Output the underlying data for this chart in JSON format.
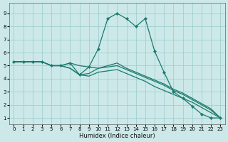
{
  "xlabel": "Humidex (Indice chaleur)",
  "bg_color": "#cce8e8",
  "line_color": "#1a7a6e",
  "grid_color": "#99cccc",
  "ylim": [
    0.5,
    9.8
  ],
  "yticks": [
    1,
    2,
    3,
    4,
    5,
    6,
    7,
    8,
    9
  ],
  "xtick_labels": [
    "0",
    "1",
    "2",
    "3",
    "5",
    "6",
    "7",
    "8",
    "9",
    "10",
    "11",
    "12",
    "13",
    "14",
    "15",
    "16",
    "17",
    "18",
    "19",
    "20",
    "21",
    "22",
    "23"
  ],
  "series": [
    {
      "x": [
        0,
        1,
        2,
        3,
        4,
        5,
        6,
        7,
        8,
        9,
        10,
        11,
        12,
        13,
        14,
        15,
        16,
        17,
        18,
        19,
        20,
        21,
        22
      ],
      "y": [
        5.3,
        5.3,
        5.3,
        5.3,
        5.0,
        5.0,
        5.2,
        4.3,
        4.9,
        6.3,
        8.6,
        9.0,
        8.6,
        8.0,
        8.6,
        6.1,
        4.5,
        3.0,
        2.5,
        1.9,
        1.3,
        1.0,
        1.0
      ],
      "has_markers": true
    },
    {
      "x": [
        0,
        1,
        2,
        3,
        4,
        5,
        6,
        7,
        8,
        9,
        10,
        11,
        12,
        13,
        14,
        15,
        16,
        17,
        18,
        19,
        20,
        21,
        22
      ],
      "y": [
        5.3,
        5.3,
        5.3,
        5.3,
        5.0,
        5.0,
        4.8,
        4.3,
        4.4,
        4.8,
        5.0,
        5.2,
        4.8,
        4.5,
        4.2,
        3.9,
        3.6,
        3.2,
        2.9,
        2.5,
        2.1,
        1.7,
        1.0
      ],
      "has_markers": false
    },
    {
      "x": [
        0,
        1,
        2,
        3,
        4,
        5,
        6,
        7,
        8,
        9,
        10,
        11,
        12,
        13,
        14,
        15,
        16,
        17,
        18,
        19,
        20,
        21,
        22
      ],
      "y": [
        5.3,
        5.3,
        5.3,
        5.3,
        5.0,
        5.0,
        4.8,
        4.3,
        4.2,
        4.5,
        4.6,
        4.7,
        4.4,
        4.1,
        3.8,
        3.4,
        3.1,
        2.8,
        2.5,
        2.2,
        1.8,
        1.4,
        1.0
      ],
      "has_markers": false
    },
    {
      "x": [
        0,
        1,
        2,
        3,
        4,
        5,
        6,
        7,
        8,
        9,
        10,
        11,
        12,
        13,
        14,
        15,
        16,
        17,
        18,
        19,
        20,
        21,
        22
      ],
      "y": [
        5.3,
        5.3,
        5.3,
        5.3,
        5.0,
        5.0,
        5.2,
        5.0,
        4.9,
        4.8,
        4.9,
        5.0,
        4.7,
        4.4,
        4.1,
        3.8,
        3.5,
        3.1,
        2.8,
        2.4,
        2.0,
        1.6,
        1.0
      ],
      "has_markers": false
    }
  ]
}
